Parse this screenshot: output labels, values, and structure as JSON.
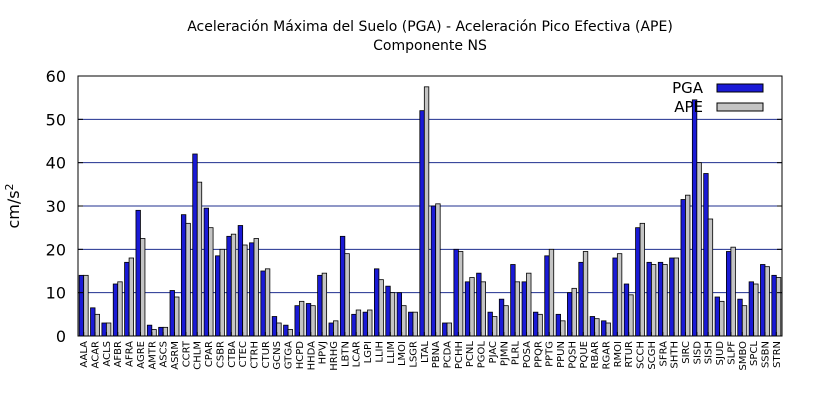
{
  "chart_data": {
    "type": "bar",
    "title": "Aceleración Máxima del Suelo (PGA) -  Aceleración Pico Efectiva (APE)",
    "subtitle": "Componente NS",
    "ylabel": "cm/s",
    "ylabel_superscript": "2",
    "xlabel": "",
    "ylim": [
      0,
      60
    ],
    "yticks": [
      0,
      10,
      20,
      30,
      40,
      50,
      60
    ],
    "grid": "horizontal",
    "legend_position": "top-right",
    "categories": [
      "AALA",
      "ACAR",
      "ACLS",
      "AFBR",
      "AFRA",
      "AGRE",
      "AMTR",
      "ASCS",
      "ASRM",
      "CCRT",
      "CHLM",
      "CPAR",
      "CSBR",
      "CTBA",
      "CTEC",
      "CTRH",
      "CTUR",
      "GCNS",
      "GTGA",
      "HCPD",
      "HHDA",
      "HPVJ",
      "HRHG",
      "LBTN",
      "LCAR",
      "LGPI",
      "LLIH",
      "LLIM",
      "LMOI",
      "LSGR",
      "LTAL",
      "PBNA",
      "PCDA",
      "PCHH",
      "PCNL",
      "PGOL",
      "PJAC",
      "PJMN",
      "PLRL",
      "POSA",
      "PPQR",
      "PPTG",
      "PPUN",
      "PQSH",
      "PQUE",
      "RBAR",
      "RGAR",
      "RMOI",
      "RTUR",
      "SCCH",
      "SCGH",
      "SFRA",
      "SHTH",
      "SIRC",
      "SISD",
      "SISH",
      "SJUD",
      "SLPF",
      "SMBO",
      "SPCL",
      "SSBN",
      "STRN"
    ],
    "series": [
      {
        "name": "PGA",
        "color": "#1a1ad6",
        "values": [
          14,
          6.5,
          3,
          12,
          17,
          29,
          2.5,
          2,
          10.5,
          28,
          42,
          29.5,
          18.5,
          23,
          25.5,
          21.5,
          15,
          4.5,
          2.5,
          7,
          7.5,
          14,
          3,
          23,
          5,
          5.5,
          15.5,
          11.5,
          10,
          5.5,
          52,
          30,
          3,
          20,
          12.5,
          14.5,
          5.5,
          8.5,
          16.5,
          12.5,
          5.5,
          18.5,
          5,
          10,
          17,
          4.5,
          3.5,
          18,
          12,
          25,
          17,
          17,
          18,
          31.5,
          54.5,
          37.5,
          9,
          19.5,
          8.5,
          12.5,
          16.5,
          14
        ]
      },
      {
        "name": "APE",
        "color": "#c4c4c4",
        "values": [
          14,
          5,
          3,
          12.5,
          18,
          22.5,
          1.5,
          2,
          9,
          26,
          35.5,
          25,
          20,
          23.5,
          21,
          22.5,
          15.5,
          3,
          1.5,
          8,
          7,
          14.5,
          3.5,
          19,
          6,
          6,
          13,
          10,
          7,
          5.5,
          57.5,
          30.5,
          3,
          19.5,
          13.5,
          12.5,
          4.5,
          7,
          12.5,
          14.5,
          5,
          20,
          3.5,
          11,
          19.5,
          4,
          3,
          19,
          9.5,
          26,
          16.5,
          16.5,
          18,
          32.5,
          40,
          27,
          8,
          20.5,
          7,
          12,
          16,
          13.5
        ]
      }
    ]
  }
}
